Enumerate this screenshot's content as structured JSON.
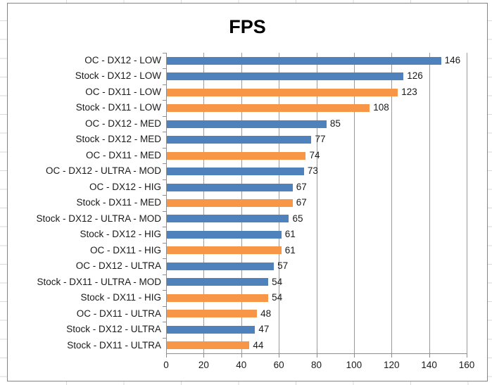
{
  "chart_data": {
    "type": "bar",
    "orientation": "horizontal",
    "title": "FPS",
    "categories": [
      "OC - DX12 - LOW",
      "Stock - DX12 - LOW",
      "OC - DX11 - LOW",
      "Stock - DX11 - LOW",
      "OC - DX12 - MED",
      "Stock - DX12 - MED",
      "OC - DX11 - MED",
      "OC - DX12 - ULTRA - MOD",
      "OC - DX12 - HIG",
      "Stock - DX11 - MED",
      "Stock - DX12 - ULTRA - MOD",
      "Stock - DX12 - HIG",
      "OC - DX11 - HIG",
      "OC - DX12 - ULTRA",
      "Stock - DX11 - ULTRA - MOD",
      "Stock - DX11 - HIG",
      "OC - DX11 - ULTRA",
      "Stock - DX12 - ULTRA",
      "Stock - DX11 - ULTRA"
    ],
    "values": [
      146,
      126,
      123,
      108,
      85,
      77,
      74,
      73,
      67,
      67,
      65,
      61,
      61,
      57,
      54,
      54,
      48,
      47,
      44
    ],
    "bar_colors": [
      "blue",
      "blue",
      "orange",
      "orange",
      "blue",
      "blue",
      "orange",
      "blue",
      "blue",
      "orange",
      "blue",
      "blue",
      "orange",
      "blue",
      "blue",
      "orange",
      "orange",
      "blue",
      "orange"
    ],
    "palette": {
      "blue": "#4F81BD",
      "orange": "#F79646"
    },
    "grid_color": "#9b9b9b",
    "axis_color": "#8e8e8e",
    "xlim": [
      0,
      160
    ],
    "xticks": [
      0,
      20,
      40,
      60,
      80,
      100,
      120,
      140,
      160
    ],
    "xtick_labels": [
      "0",
      "20",
      "40",
      "60",
      "80",
      "100",
      "120",
      "140",
      "160"
    ],
    "grid": "vertical",
    "value_labels": true,
    "legend": "none"
  }
}
